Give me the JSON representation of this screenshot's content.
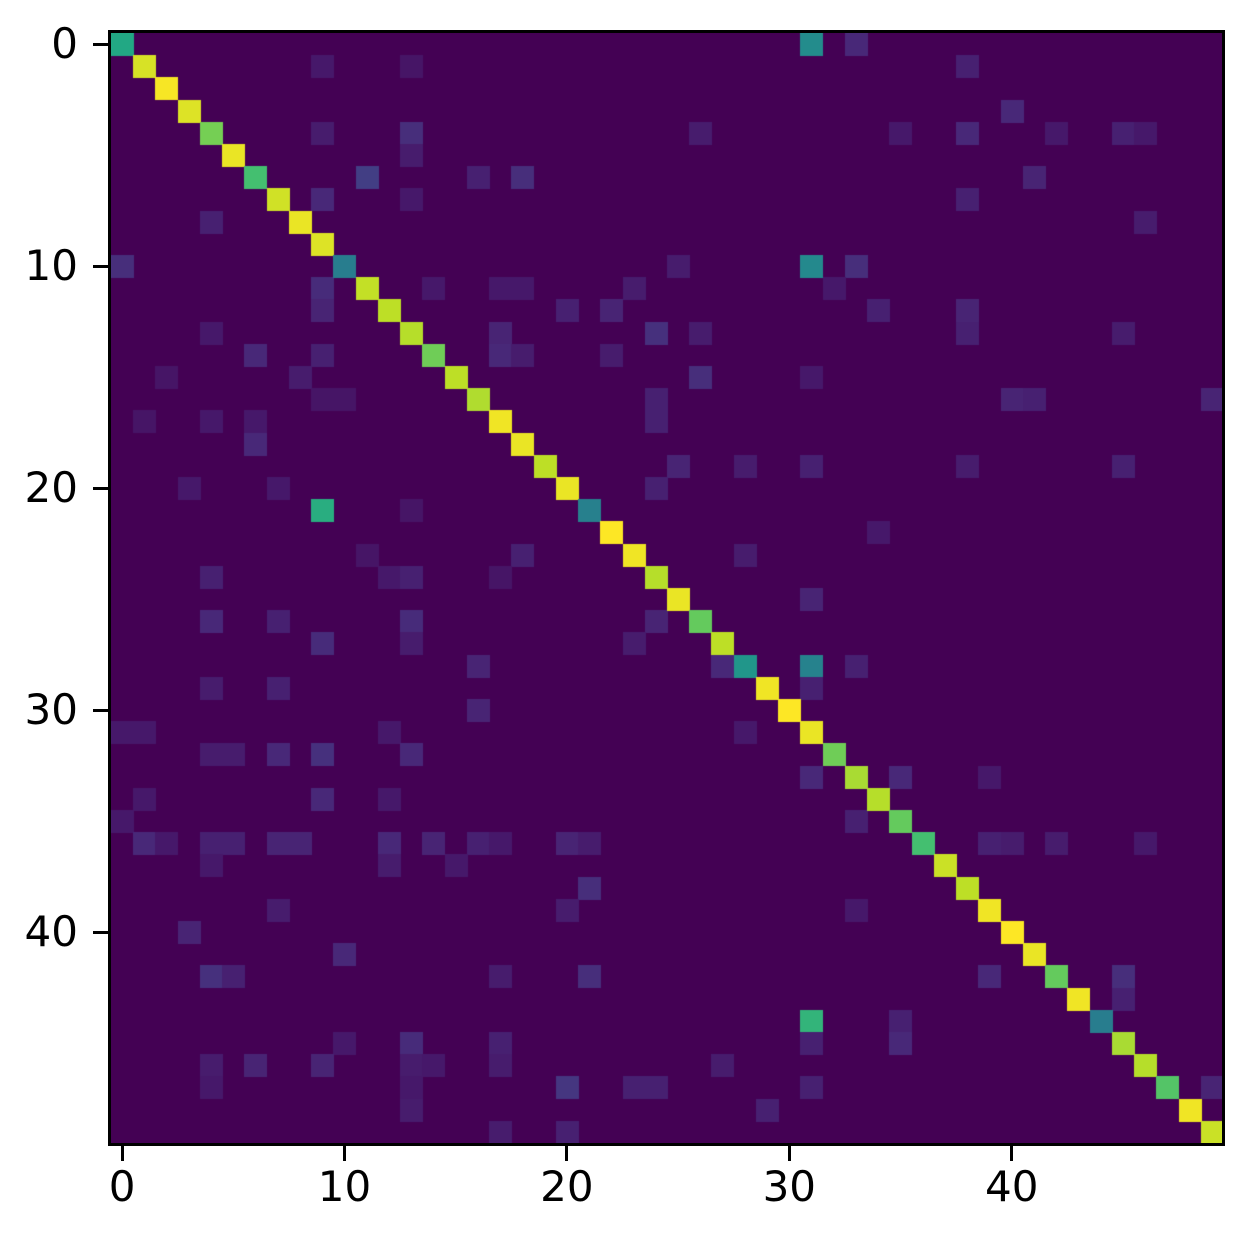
{
  "figure": {
    "background": "#ffffff",
    "axis_color": "#000000",
    "tick_label_color": "#000000"
  },
  "chart_data": {
    "type": "heatmap",
    "title": "",
    "xlabel": "",
    "ylabel": "",
    "n_rows": 50,
    "n_cols": 50,
    "colormap": "viridis",
    "value_range": [
      0.0,
      1.0
    ],
    "background_value": 0.0,
    "grid": false,
    "x_ticks": [
      0,
      10,
      20,
      30,
      40
    ],
    "y_ticks": [
      0,
      10,
      20,
      30,
      40
    ],
    "colormap_stops": [
      "#440154",
      "#482878",
      "#414487",
      "#355f8d",
      "#2a788e",
      "#21918c",
      "#22a884",
      "#44bf70",
      "#7ad151",
      "#bddf26",
      "#fde725"
    ],
    "diagonal": [
      0.6,
      0.94,
      0.99,
      0.95,
      0.79,
      0.97,
      0.7,
      0.93,
      0.97,
      0.95,
      0.42,
      0.91,
      0.9,
      0.89,
      0.78,
      0.9,
      0.88,
      0.98,
      0.97,
      0.9,
      0.97,
      0.43,
      1.0,
      0.98,
      0.89,
      0.97,
      0.76,
      0.9,
      0.52,
      0.98,
      1.0,
      0.97,
      0.78,
      0.87,
      0.89,
      0.76,
      0.7,
      0.92,
      0.9,
      0.98,
      1.0,
      0.97,
      0.76,
      0.98,
      0.42,
      0.87,
      0.89,
      0.73,
      0.98,
      0.92
    ],
    "off_diagonal_cells": [
      [
        0,
        31,
        0.48
      ],
      [
        0,
        33,
        0.1
      ],
      [
        1,
        9,
        0.06
      ],
      [
        1,
        13,
        0.05
      ],
      [
        1,
        38,
        0.08
      ],
      [
        3,
        40,
        0.1
      ],
      [
        4,
        9,
        0.07
      ],
      [
        4,
        13,
        0.12
      ],
      [
        4,
        26,
        0.07
      ],
      [
        4,
        35,
        0.06
      ],
      [
        4,
        38,
        0.1
      ],
      [
        4,
        42,
        0.06
      ],
      [
        4,
        45,
        0.08
      ],
      [
        4,
        46,
        0.06
      ],
      [
        5,
        13,
        0.07
      ],
      [
        6,
        11,
        0.18
      ],
      [
        6,
        16,
        0.08
      ],
      [
        6,
        18,
        0.12
      ],
      [
        6,
        41,
        0.09
      ],
      [
        7,
        9,
        0.1
      ],
      [
        7,
        13,
        0.06
      ],
      [
        7,
        38,
        0.08
      ],
      [
        8,
        4,
        0.08
      ],
      [
        8,
        46,
        0.07
      ],
      [
        10,
        0,
        0.12
      ],
      [
        10,
        25,
        0.07
      ],
      [
        10,
        31,
        0.47
      ],
      [
        10,
        33,
        0.12
      ],
      [
        11,
        9,
        0.11
      ],
      [
        11,
        14,
        0.06
      ],
      [
        11,
        17,
        0.06
      ],
      [
        11,
        18,
        0.06
      ],
      [
        11,
        23,
        0.07
      ],
      [
        11,
        32,
        0.06
      ],
      [
        12,
        9,
        0.09
      ],
      [
        12,
        20,
        0.08
      ],
      [
        12,
        22,
        0.09
      ],
      [
        12,
        34,
        0.08
      ],
      [
        12,
        38,
        0.09
      ],
      [
        13,
        4,
        0.06
      ],
      [
        13,
        17,
        0.09
      ],
      [
        13,
        24,
        0.13
      ],
      [
        13,
        26,
        0.07
      ],
      [
        13,
        38,
        0.08
      ],
      [
        13,
        45,
        0.07
      ],
      [
        14,
        6,
        0.1
      ],
      [
        14,
        9,
        0.08
      ],
      [
        14,
        17,
        0.1
      ],
      [
        14,
        18,
        0.07
      ],
      [
        14,
        22,
        0.07
      ],
      [
        15,
        2,
        0.05
      ],
      [
        15,
        8,
        0.07
      ],
      [
        15,
        26,
        0.12
      ],
      [
        15,
        31,
        0.06
      ],
      [
        16,
        9,
        0.05
      ],
      [
        16,
        10,
        0.05
      ],
      [
        16,
        24,
        0.08
      ],
      [
        16,
        40,
        0.09
      ],
      [
        16,
        41,
        0.08
      ],
      [
        16,
        49,
        0.09
      ],
      [
        17,
        1,
        0.05
      ],
      [
        17,
        4,
        0.06
      ],
      [
        17,
        6,
        0.06
      ],
      [
        17,
        24,
        0.08
      ],
      [
        18,
        6,
        0.1
      ],
      [
        19,
        25,
        0.09
      ],
      [
        19,
        28,
        0.07
      ],
      [
        19,
        31,
        0.08
      ],
      [
        19,
        38,
        0.07
      ],
      [
        19,
        45,
        0.08
      ],
      [
        20,
        3,
        0.06
      ],
      [
        20,
        7,
        0.06
      ],
      [
        20,
        24,
        0.08
      ],
      [
        21,
        9,
        0.62
      ],
      [
        21,
        13,
        0.05
      ],
      [
        22,
        34,
        0.06
      ],
      [
        23,
        11,
        0.05
      ],
      [
        23,
        18,
        0.08
      ],
      [
        23,
        28,
        0.07
      ],
      [
        24,
        4,
        0.08
      ],
      [
        24,
        12,
        0.06
      ],
      [
        24,
        13,
        0.08
      ],
      [
        24,
        17,
        0.05
      ],
      [
        25,
        31,
        0.09
      ],
      [
        26,
        4,
        0.1
      ],
      [
        26,
        7,
        0.08
      ],
      [
        26,
        13,
        0.11
      ],
      [
        26,
        24,
        0.09
      ],
      [
        27,
        9,
        0.11
      ],
      [
        27,
        13,
        0.07
      ],
      [
        27,
        23,
        0.07
      ],
      [
        28,
        16,
        0.09
      ],
      [
        28,
        27,
        0.1
      ],
      [
        28,
        31,
        0.44
      ],
      [
        28,
        33,
        0.08
      ],
      [
        29,
        4,
        0.07
      ],
      [
        29,
        7,
        0.08
      ],
      [
        29,
        31,
        0.08
      ],
      [
        30,
        16,
        0.09
      ],
      [
        31,
        0,
        0.06
      ],
      [
        31,
        1,
        0.06
      ],
      [
        31,
        12,
        0.06
      ],
      [
        31,
        28,
        0.06
      ],
      [
        32,
        4,
        0.07
      ],
      [
        32,
        5,
        0.07
      ],
      [
        32,
        7,
        0.1
      ],
      [
        32,
        9,
        0.13
      ],
      [
        32,
        13,
        0.1
      ],
      [
        33,
        31,
        0.1
      ],
      [
        33,
        35,
        0.1
      ],
      [
        33,
        39,
        0.06
      ],
      [
        34,
        1,
        0.06
      ],
      [
        34,
        9,
        0.1
      ],
      [
        34,
        12,
        0.06
      ],
      [
        35,
        0,
        0.06
      ],
      [
        35,
        33,
        0.08
      ],
      [
        36,
        1,
        0.1
      ],
      [
        36,
        2,
        0.06
      ],
      [
        36,
        4,
        0.08
      ],
      [
        36,
        5,
        0.08
      ],
      [
        36,
        7,
        0.09
      ],
      [
        36,
        8,
        0.09
      ],
      [
        36,
        12,
        0.1
      ],
      [
        36,
        14,
        0.09
      ],
      [
        36,
        16,
        0.08
      ],
      [
        36,
        17,
        0.06
      ],
      [
        36,
        20,
        0.09
      ],
      [
        36,
        21,
        0.07
      ],
      [
        36,
        39,
        0.08
      ],
      [
        36,
        40,
        0.07
      ],
      [
        36,
        42,
        0.07
      ],
      [
        36,
        46,
        0.06
      ],
      [
        37,
        4,
        0.06
      ],
      [
        37,
        12,
        0.07
      ],
      [
        37,
        15,
        0.06
      ],
      [
        38,
        21,
        0.12
      ],
      [
        39,
        7,
        0.07
      ],
      [
        39,
        20,
        0.07
      ],
      [
        39,
        33,
        0.06
      ],
      [
        40,
        3,
        0.09
      ],
      [
        41,
        10,
        0.1
      ],
      [
        42,
        4,
        0.13
      ],
      [
        42,
        5,
        0.08
      ],
      [
        42,
        17,
        0.07
      ],
      [
        42,
        21,
        0.12
      ],
      [
        42,
        39,
        0.1
      ],
      [
        42,
        45,
        0.12
      ],
      [
        43,
        45,
        0.08
      ],
      [
        44,
        31,
        0.65
      ],
      [
        44,
        35,
        0.08
      ],
      [
        45,
        10,
        0.06
      ],
      [
        45,
        13,
        0.11
      ],
      [
        45,
        17,
        0.08
      ],
      [
        45,
        31,
        0.08
      ],
      [
        45,
        35,
        0.1
      ],
      [
        46,
        4,
        0.07
      ],
      [
        46,
        6,
        0.09
      ],
      [
        46,
        9,
        0.09
      ],
      [
        46,
        13,
        0.07
      ],
      [
        46,
        14,
        0.06
      ],
      [
        46,
        17,
        0.07
      ],
      [
        46,
        27,
        0.07
      ],
      [
        47,
        4,
        0.06
      ],
      [
        47,
        13,
        0.06
      ],
      [
        47,
        20,
        0.15
      ],
      [
        47,
        23,
        0.08
      ],
      [
        47,
        24,
        0.08
      ],
      [
        47,
        31,
        0.08
      ],
      [
        47,
        49,
        0.09
      ],
      [
        48,
        13,
        0.07
      ],
      [
        48,
        29,
        0.08
      ],
      [
        49,
        17,
        0.07
      ],
      [
        49,
        20,
        0.08
      ]
    ]
  }
}
